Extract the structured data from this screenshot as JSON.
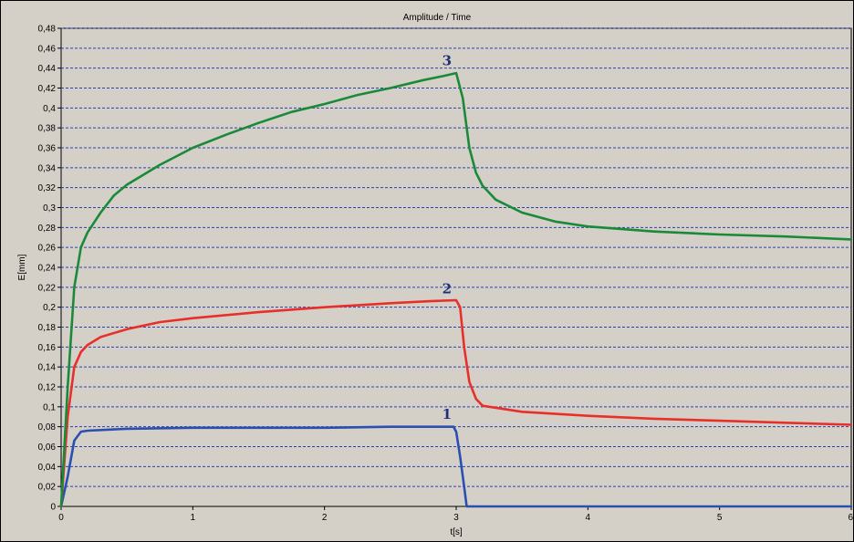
{
  "chart_data": {
    "type": "line",
    "title": "Amplitude / Time",
    "xlabel": "t[s]",
    "ylabel": "E[mm]",
    "xlim": [
      0,
      6
    ],
    "ylim": [
      0,
      0.48
    ],
    "x_ticks": [
      0,
      1,
      2,
      3,
      4,
      5,
      6
    ],
    "x_tick_labels": [
      "0",
      "1",
      "2",
      "3",
      "4",
      "5",
      "6"
    ],
    "y_ticks": [
      0,
      0.02,
      0.04,
      0.06,
      0.08,
      0.1,
      0.12,
      0.14,
      0.16,
      0.18,
      0.2,
      0.22,
      0.24,
      0.26,
      0.28,
      0.3,
      0.32,
      0.34,
      0.36,
      0.38,
      0.4,
      0.42,
      0.44,
      0.46,
      0.48
    ],
    "y_tick_labels": [
      "0",
      "0,02",
      "0,04",
      "0,06",
      "0,08",
      "0,1",
      "0,12",
      "0,14",
      "0,16",
      "0,18",
      "0,2",
      "0,22",
      "0,24",
      "0,26",
      "0,28",
      "0,3",
      "0,32",
      "0,34",
      "0,36",
      "0,38",
      "0,4",
      "0,42",
      "0,44",
      "0,46",
      "0,48"
    ],
    "grid": "horizontal dashed",
    "background": "#d4d0c8",
    "grid_color": "#2c3fb0",
    "series": [
      {
        "label": "1",
        "color": "#2a4fb0",
        "x": [
          0,
          0.05,
          0.1,
          0.15,
          0.2,
          0.5,
          1,
          1.5,
          2,
          2.5,
          2.98,
          3.0,
          3.03,
          3.06,
          3.08,
          3.2,
          4,
          5,
          6
        ],
        "y": [
          0,
          0.03,
          0.066,
          0.075,
          0.076,
          0.078,
          0.079,
          0.079,
          0.079,
          0.08,
          0.08,
          0.075,
          0.05,
          0.02,
          0,
          0,
          0,
          0,
          0
        ]
      },
      {
        "label": "2",
        "color": "#e8302a",
        "x": [
          0,
          0.05,
          0.1,
          0.15,
          0.2,
          0.3,
          0.5,
          0.75,
          1,
          1.5,
          2,
          2.5,
          2.8,
          3.0,
          3.03,
          3.06,
          3.1,
          3.15,
          3.2,
          3.5,
          4,
          4.5,
          5,
          5.5,
          6
        ],
        "y": [
          0,
          0.09,
          0.14,
          0.155,
          0.162,
          0.17,
          0.178,
          0.185,
          0.189,
          0.195,
          0.2,
          0.204,
          0.206,
          0.207,
          0.2,
          0.16,
          0.125,
          0.108,
          0.101,
          0.095,
          0.091,
          0.088,
          0.086,
          0.084,
          0.082
        ]
      },
      {
        "label": "3",
        "color": "#1a8a3a",
        "x": [
          0,
          0.05,
          0.1,
          0.15,
          0.2,
          0.3,
          0.4,
          0.5,
          0.75,
          1,
          1.25,
          1.5,
          1.75,
          2,
          2.25,
          2.5,
          2.75,
          2.9,
          3.0,
          3.05,
          3.1,
          3.15,
          3.2,
          3.3,
          3.5,
          3.75,
          4,
          4.5,
          5,
          5.5,
          6
        ],
        "y": [
          0,
          0.12,
          0.22,
          0.26,
          0.275,
          0.295,
          0.312,
          0.323,
          0.343,
          0.36,
          0.373,
          0.385,
          0.396,
          0.404,
          0.413,
          0.42,
          0.428,
          0.432,
          0.435,
          0.41,
          0.36,
          0.335,
          0.322,
          0.308,
          0.295,
          0.286,
          0.281,
          0.276,
          0.273,
          0.271,
          0.268
        ]
      }
    ],
    "annotations": [
      {
        "text": "1",
        "x": 2.93,
        "y": 0.088
      },
      {
        "text": "2",
        "x": 2.93,
        "y": 0.214
      },
      {
        "text": "3",
        "x": 2.93,
        "y": 0.443
      }
    ]
  }
}
